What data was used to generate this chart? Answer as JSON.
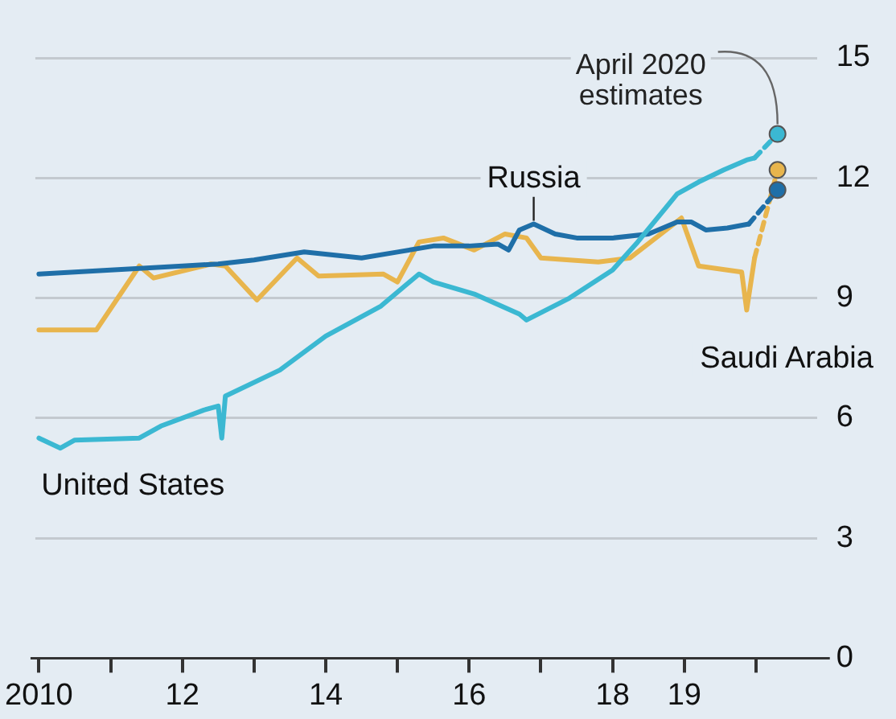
{
  "chart_data": {
    "type": "line",
    "annotations": [
      {
        "text": "April 2020\nestimates",
        "x": 2020.3,
        "y": 13.1
      }
    ],
    "series": [
      {
        "name": "United States",
        "color": "#3bb8d2",
        "x": [
          2010,
          2010.3,
          2010.5,
          2011.4,
          2011.7,
          2012.3,
          2012.5,
          2012.55,
          2012.6,
          2013.36,
          2014.0,
          2014.77,
          2015.3,
          2015.5,
          2016.07,
          2016.7,
          2016.8,
          2017.4,
          2018.0,
          2018.35,
          2018.9,
          2019.2,
          2019.55,
          2019.87,
          2019.98
        ],
        "values": [
          5.5,
          5.25,
          5.45,
          5.5,
          5.8,
          6.2,
          6.3,
          5.5,
          6.55,
          7.2,
          8.05,
          8.8,
          9.6,
          9.4,
          9.1,
          8.6,
          8.45,
          9.0,
          9.7,
          10.4,
          11.6,
          11.9,
          12.2,
          12.45,
          12.5
        ]
      },
      {
        "name": "Russia",
        "color": "#1f6fa8",
        "x": [
          2010,
          2010.5,
          2011,
          2011.5,
          2012,
          2012.5,
          2013,
          2013.7,
          2014.5,
          2015,
          2015.5,
          2016,
          2016.4,
          2016.55,
          2016.7,
          2016.9,
          2017.2,
          2017.5,
          2018,
          2018.5,
          2018.9,
          2019.1,
          2019.3,
          2019.6,
          2019.9
        ],
        "values": [
          9.6,
          9.65,
          9.7,
          9.75,
          9.8,
          9.85,
          9.95,
          10.15,
          10.0,
          10.15,
          10.3,
          10.3,
          10.35,
          10.2,
          10.7,
          10.85,
          10.6,
          10.5,
          10.5,
          10.6,
          10.9,
          10.9,
          10.7,
          10.75,
          10.85
        ]
      },
      {
        "name": "Saudi Arabia",
        "color": "#e8b54d",
        "x": [
          2010,
          2010.8,
          2011.4,
          2011.6,
          2012.4,
          2012.6,
          2013.04,
          2013.6,
          2013.9,
          2014.8,
          2015.0,
          2015.3,
          2015.64,
          2016.07,
          2016.5,
          2016.8,
          2017.0,
          2017.8,
          2018.24,
          2018.96,
          2019.2,
          2019.8,
          2019.87,
          2019.98
        ],
        "values": [
          8.2,
          8.2,
          9.8,
          9.5,
          9.85,
          9.8,
          8.95,
          10.0,
          9.55,
          9.6,
          9.4,
          10.4,
          10.5,
          10.2,
          10.6,
          10.5,
          10.0,
          9.9,
          10.0,
          11.0,
          9.8,
          9.65,
          8.7,
          10.0
        ]
      },
      {
        "type": "line",
        "color": "#3bb8d2",
        "line_style": "dashed",
        "marker": "circle",
        "x": [
          2019.98,
          2020.3
        ],
        "values": [
          12.5,
          13.1
        ]
      },
      {
        "type": "line",
        "color": "#1f6fa8",
        "line_style": "dashed",
        "marker": "circle",
        "x": [
          2019.9,
          2020.3
        ],
        "values": [
          10.85,
          11.7
        ]
      },
      {
        "type": "line",
        "color": "#e8b54d",
        "line_style": "dashed",
        "marker": "circle",
        "x": [
          2019.98,
          2020.3
        ],
        "values": [
          10.0,
          12.2
        ]
      }
    ],
    "xlim": [
      2009.95,
      2020.85
    ],
    "xticks": [
      2010,
      {
        "value": 2011,
        "label": null
      },
      {
        "value": 2012,
        "label": "12"
      },
      {
        "value": 2013,
        "label": null
      },
      {
        "value": 2014,
        "label": "14"
      },
      {
        "value": 2015,
        "label": null
      },
      {
        "value": 2016,
        "label": "16"
      },
      {
        "value": 2017,
        "label": null
      },
      {
        "value": 2018,
        "label": "18"
      },
      {
        "value": 2019,
        "label": "19"
      },
      {
        "value": 2020,
        "label": null
      }
    ],
    "ylim": [
      0,
      15
    ],
    "yticks": [
      0,
      3,
      6,
      9,
      12,
      15
    ],
    "grid": "y",
    "legend": false
  }
}
